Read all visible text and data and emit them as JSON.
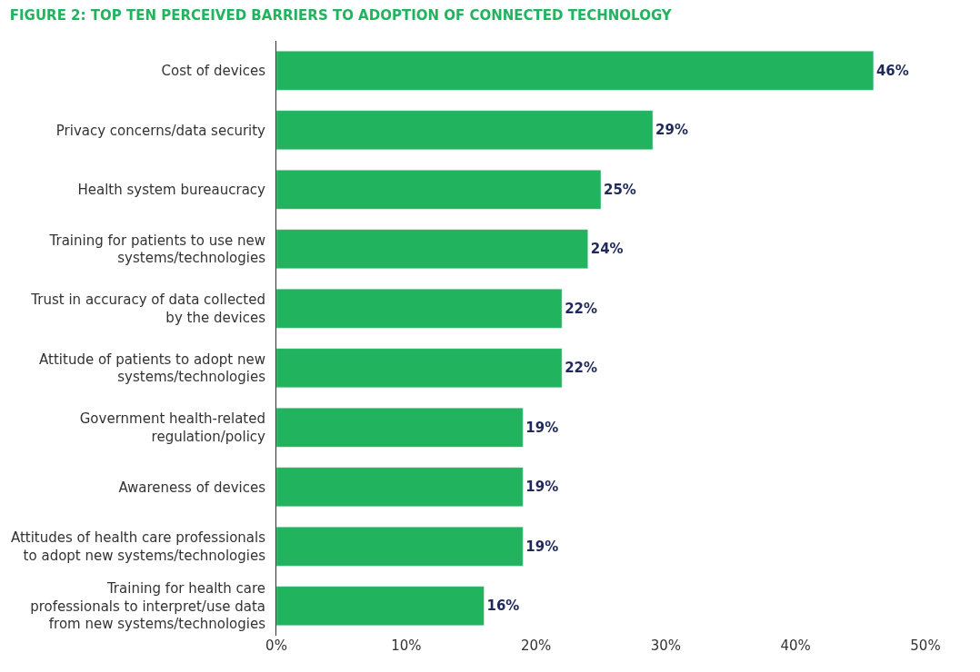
{
  "chart_data": {
    "type": "bar",
    "orientation": "horizontal",
    "title": "FIGURE 2: TOP TEN PERCEIVED BARRIERS TO ADOPTION OF CONNECTED TECHNOLOGY",
    "categories": [
      "Cost of devices",
      "Privacy concerns/data security",
      "Health system bureaucracy",
      "Training for patients to use new\nsystems/technologies",
      "Trust in accuracy of data collected\nby the devices",
      "Attitude of patients to adopt new\nsystems/technologies",
      "Government health-related\nregulation/policy",
      "Awareness of devices",
      "Attitudes of health care professionals\nto adopt new systems/technologies",
      "Training for health care\nprofessionals to interpret/use data\nfrom new systems/technologies"
    ],
    "values": [
      46,
      29,
      25,
      24,
      22,
      22,
      19,
      19,
      19,
      16
    ],
    "value_labels": [
      "46%",
      "29%",
      "25%",
      "24%",
      "22%",
      "22%",
      "19%",
      "19%",
      "19%",
      "16%"
    ],
    "color": "#22b35e",
    "xlim": [
      0,
      50
    ],
    "xticks": [
      {
        "value": 0,
        "label": "0%"
      },
      {
        "value": 10,
        "label": "10%"
      },
      {
        "value": 20,
        "label": "20%"
      },
      {
        "value": 30,
        "label": "30%"
      },
      {
        "value": 40,
        "label": "40%"
      },
      {
        "value": 50,
        "label": "50%"
      }
    ]
  }
}
